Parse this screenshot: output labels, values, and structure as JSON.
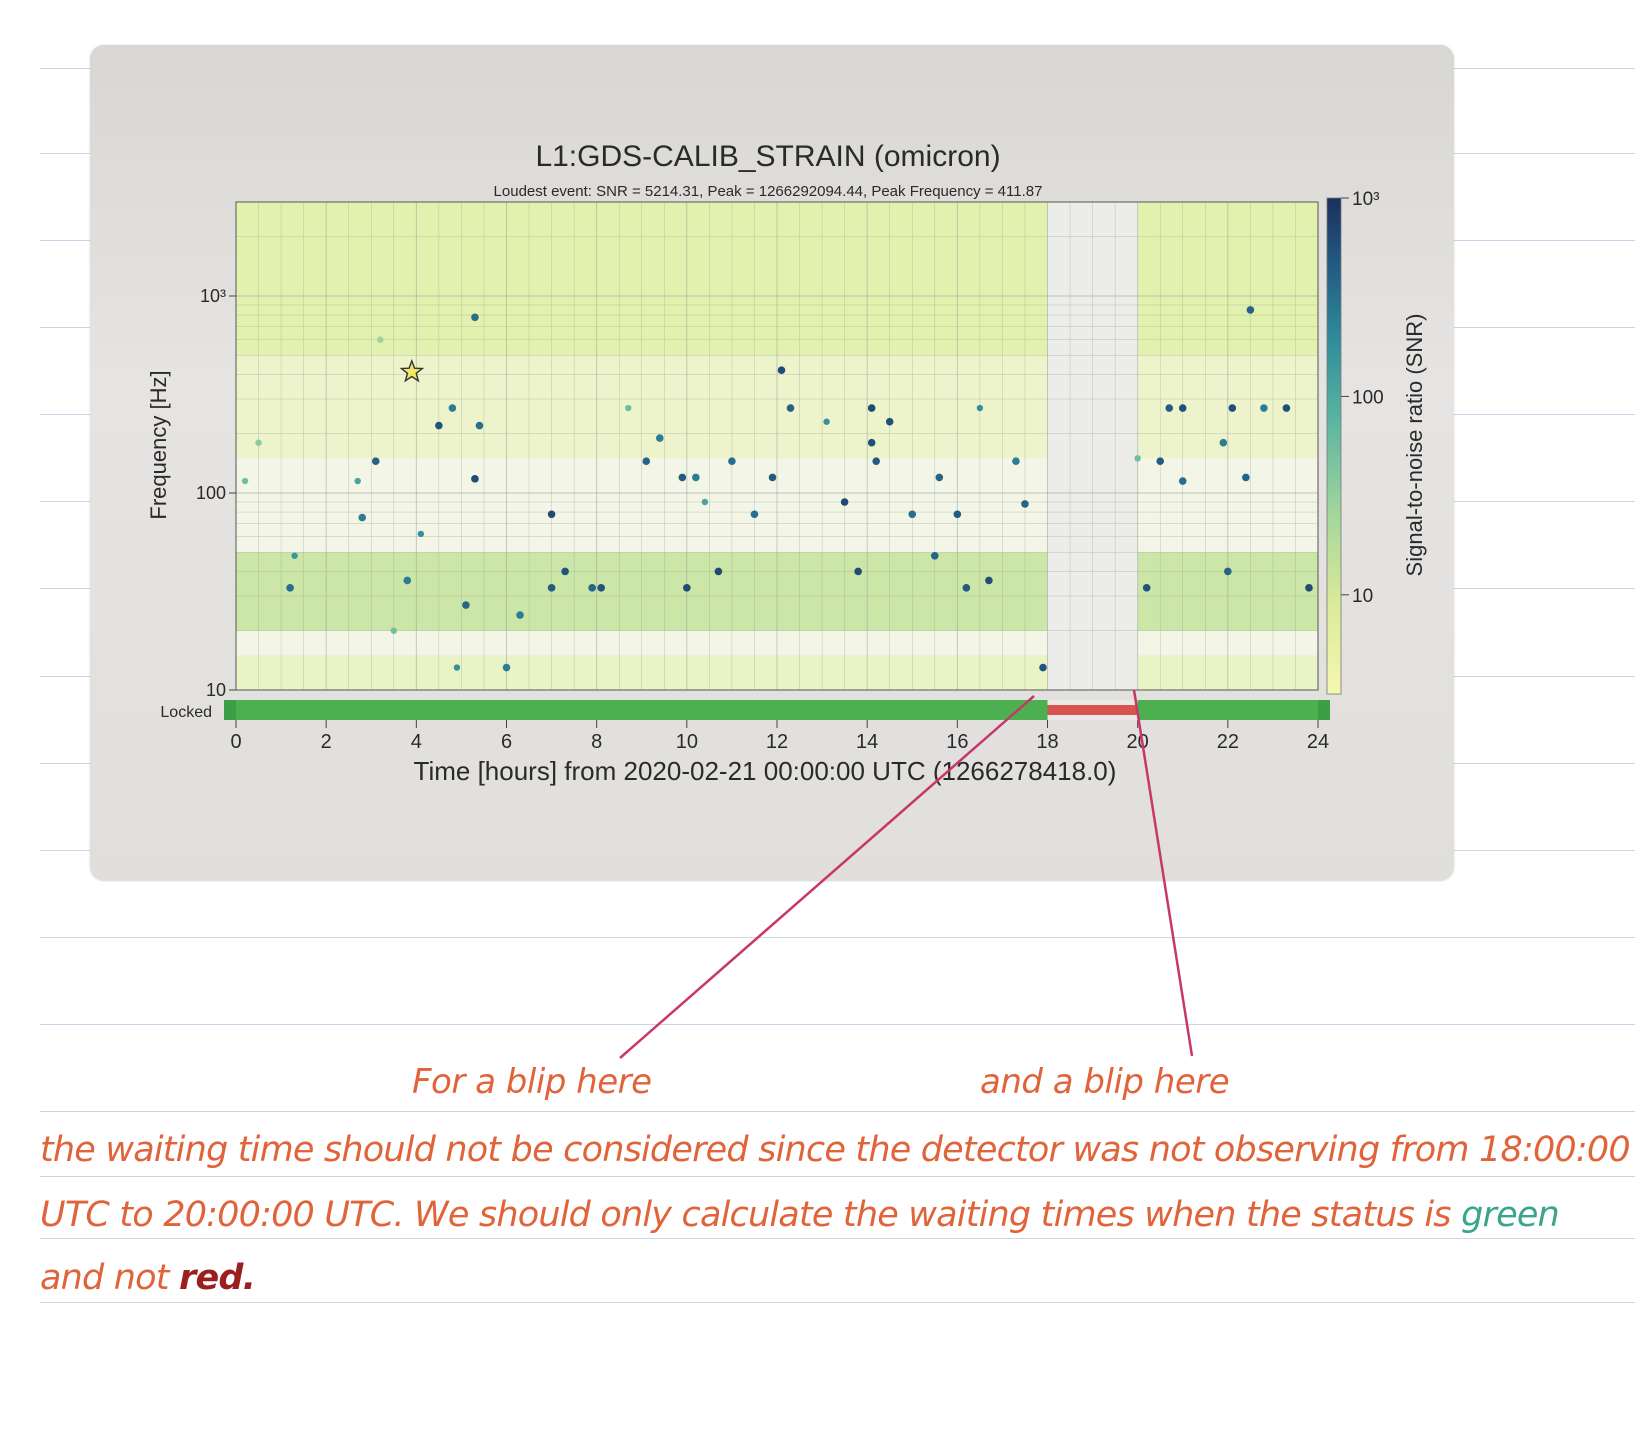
{
  "chart_data": {
    "type": "scatter",
    "title": "L1:GDS-CALIB_STRAIN (omicron)",
    "subtitle": "Loudest event: SNR = 5214.31, Peak = 1266292094.44, Peak Frequency = 411.87",
    "xlabel": "Time [hours] from 2020-02-21 00:00:00 UTC (1266278418.0)",
    "ylabel": "Frequency [Hz]",
    "xlim": [
      0,
      24
    ],
    "ylim": [
      10,
      3000
    ],
    "yscale": "log",
    "xticks": [
      "0",
      "2",
      "4",
      "6",
      "8",
      "10",
      "12",
      "14",
      "16",
      "18",
      "20",
      "22",
      "24"
    ],
    "yticks": [
      {
        "value": 10,
        "label": "10"
      },
      {
        "value": 100,
        "label": "100"
      },
      {
        "value": 1000,
        "label": "10³"
      }
    ],
    "grid": true,
    "colorbar": {
      "label": "Signal-to-noise ratio (SNR)",
      "scale": "log",
      "ticks": [
        {
          "value": 10,
          "label": "10"
        },
        {
          "value": 100,
          "label": "100"
        },
        {
          "value": 1000,
          "label": "10³"
        }
      ],
      "colors": [
        "#f5f7b0",
        "#dbeb9a",
        "#a4d69b",
        "#5cb5a0",
        "#2e8a9b",
        "#22557f",
        "#1b2f5e"
      ]
    },
    "no_data_interval": [
      18,
      20
    ],
    "segment_bar": {
      "label": "Locked",
      "segments": [
        {
          "start": 0,
          "end": 18,
          "state": "locked",
          "color": "#4caf50"
        },
        {
          "start": 18,
          "end": 20,
          "state": "not locked",
          "color": "#d9534f"
        },
        {
          "start": 20,
          "end": 24,
          "state": "locked",
          "color": "#4caf50"
        }
      ]
    },
    "loudest_event": {
      "x": 3.9,
      "y": 411.87,
      "snr": 5214.31
    },
    "events": [
      {
        "x": 0.2,
        "y": 115,
        "snr": 60
      },
      {
        "x": 0.5,
        "y": 180,
        "snr": 40
      },
      {
        "x": 1.2,
        "y": 33,
        "snr": 400
      },
      {
        "x": 1.3,
        "y": 48,
        "snr": 180
      },
      {
        "x": 2.7,
        "y": 115,
        "snr": 120
      },
      {
        "x": 2.8,
        "y": 75,
        "snr": 300
      },
      {
        "x": 3.1,
        "y": 145,
        "snr": 500
      },
      {
        "x": 3.2,
        "y": 600,
        "snr": 30
      },
      {
        "x": 3.5,
        "y": 20,
        "snr": 60
      },
      {
        "x": 3.8,
        "y": 36,
        "snr": 300
      },
      {
        "x": 4.1,
        "y": 62,
        "snr": 200
      },
      {
        "x": 4.5,
        "y": 220,
        "snr": 700
      },
      {
        "x": 4.8,
        "y": 270,
        "snr": 300
      },
      {
        "x": 4.9,
        "y": 13,
        "snr": 200
      },
      {
        "x": 5.1,
        "y": 27,
        "snr": 500
      },
      {
        "x": 5.3,
        "y": 780,
        "snr": 400
      },
      {
        "x": 5.3,
        "y": 118,
        "snr": 900
      },
      {
        "x": 5.4,
        "y": 220,
        "snr": 400
      },
      {
        "x": 6.0,
        "y": 13,
        "snr": 300
      },
      {
        "x": 6.3,
        "y": 24,
        "snr": 300
      },
      {
        "x": 7.0,
        "y": 78,
        "snr": 900
      },
      {
        "x": 7.0,
        "y": 33,
        "snr": 600
      },
      {
        "x": 7.3,
        "y": 40,
        "snr": 700
      },
      {
        "x": 7.9,
        "y": 33,
        "snr": 500
      },
      {
        "x": 8.1,
        "y": 33,
        "snr": 700
      },
      {
        "x": 8.7,
        "y": 270,
        "snr": 60
      },
      {
        "x": 9.1,
        "y": 145,
        "snr": 500
      },
      {
        "x": 9.4,
        "y": 190,
        "snr": 300
      },
      {
        "x": 9.9,
        "y": 120,
        "snr": 600
      },
      {
        "x": 10.0,
        "y": 33,
        "snr": 900
      },
      {
        "x": 10.2,
        "y": 120,
        "snr": 300
      },
      {
        "x": 10.4,
        "y": 90,
        "snr": 120
      },
      {
        "x": 10.7,
        "y": 40,
        "snr": 900
      },
      {
        "x": 11.0,
        "y": 145,
        "snr": 400
      },
      {
        "x": 11.5,
        "y": 78,
        "snr": 400
      },
      {
        "x": 11.9,
        "y": 120,
        "snr": 600
      },
      {
        "x": 12.1,
        "y": 420,
        "snr": 900
      },
      {
        "x": 12.3,
        "y": 270,
        "snr": 500
      },
      {
        "x": 13.1,
        "y": 230,
        "snr": 200
      },
      {
        "x": 13.5,
        "y": 90,
        "snr": 900
      },
      {
        "x": 13.8,
        "y": 40,
        "snr": 900
      },
      {
        "x": 14.1,
        "y": 270,
        "snr": 900
      },
      {
        "x": 14.1,
        "y": 180,
        "snr": 800
      },
      {
        "x": 14.2,
        "y": 145,
        "snr": 600
      },
      {
        "x": 14.5,
        "y": 230,
        "snr": 800
      },
      {
        "x": 15.0,
        "y": 78,
        "snr": 400
      },
      {
        "x": 15.5,
        "y": 48,
        "snr": 500
      },
      {
        "x": 15.6,
        "y": 120,
        "snr": 500
      },
      {
        "x": 16.0,
        "y": 78,
        "snr": 600
      },
      {
        "x": 16.2,
        "y": 33,
        "snr": 600
      },
      {
        "x": 16.5,
        "y": 270,
        "snr": 200
      },
      {
        "x": 16.7,
        "y": 36,
        "snr": 800
      },
      {
        "x": 17.3,
        "y": 145,
        "snr": 300
      },
      {
        "x": 17.5,
        "y": 88,
        "snr": 500
      },
      {
        "x": 17.9,
        "y": 13,
        "snr": 700
      },
      {
        "x": 20.0,
        "y": 150,
        "snr": 60
      },
      {
        "x": 20.2,
        "y": 33,
        "snr": 700
      },
      {
        "x": 20.5,
        "y": 145,
        "snr": 600
      },
      {
        "x": 20.7,
        "y": 270,
        "snr": 600
      },
      {
        "x": 21.0,
        "y": 270,
        "snr": 800
      },
      {
        "x": 21.0,
        "y": 115,
        "snr": 400
      },
      {
        "x": 21.9,
        "y": 180,
        "snr": 300
      },
      {
        "x": 22.0,
        "y": 40,
        "snr": 500
      },
      {
        "x": 22.1,
        "y": 270,
        "snr": 800
      },
      {
        "x": 22.4,
        "y": 120,
        "snr": 500
      },
      {
        "x": 22.5,
        "y": 850,
        "snr": 500
      },
      {
        "x": 22.8,
        "y": 270,
        "snr": 300
      },
      {
        "x": 23.3,
        "y": 270,
        "snr": 800
      },
      {
        "x": 23.8,
        "y": 33,
        "snr": 900
      }
    ]
  },
  "annotations": {
    "first_label": "For a blip here",
    "second_label": "and a blip here",
    "note_line_1": "the waiting time should not be considered since the detector was not observing from 18:00:00",
    "note_line_2_start": "UTC to 20:00:00 UTC. We should only calculate the waiting times when the status is ",
    "note_line_2_green": "green",
    "note_line_3_start": "and not ",
    "note_line_3_red": "red."
  }
}
